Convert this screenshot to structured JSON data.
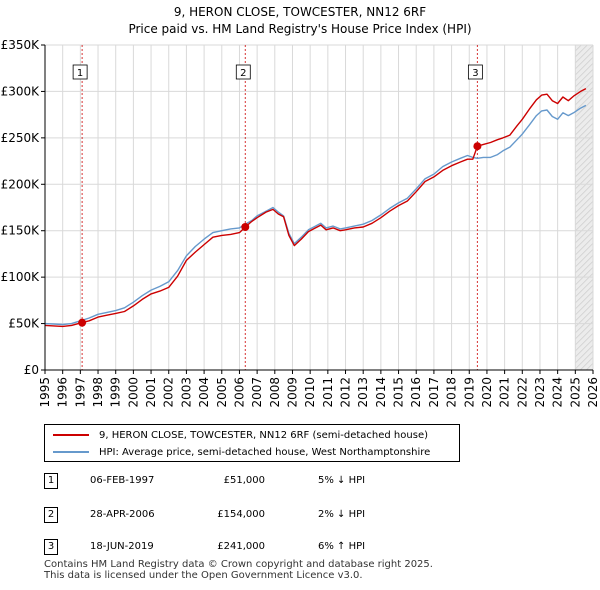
{
  "title": {
    "line1": "9, HERON CLOSE, TOWCESTER, NN12 6RF",
    "line2": "Price paid vs. HM Land Registry's House Price Index (HPI)"
  },
  "chart_data": {
    "type": "line",
    "title": "9, HERON CLOSE, TOWCESTER, NN12 6RF — Price paid vs. HM Land Registry's House Price Index (HPI)",
    "xlim": [
      1995,
      2026
    ],
    "ylim": [
      0,
      350000
    ],
    "x_ticks": [
      "1995",
      "1996",
      "1997",
      "1998",
      "1999",
      "2000",
      "2001",
      "2002",
      "2003",
      "2004",
      "2005",
      "2006",
      "2007",
      "2008",
      "2009",
      "2010",
      "2011",
      "2012",
      "2013",
      "2014",
      "2015",
      "2016",
      "2017",
      "2018",
      "2019",
      "2020",
      "2021",
      "2022",
      "2023",
      "2024",
      "2025",
      "2026"
    ],
    "y_ticks": [
      {
        "value": 0,
        "label": "£0"
      },
      {
        "value": 50000,
        "label": "£50K"
      },
      {
        "value": 100000,
        "label": "£100K"
      },
      {
        "value": 150000,
        "label": "£150K"
      },
      {
        "value": 200000,
        "label": "£200K"
      },
      {
        "value": 250000,
        "label": "£250K"
      },
      {
        "value": 300000,
        "label": "£300K"
      },
      {
        "value": 350000,
        "label": "£350K"
      }
    ],
    "grid": true,
    "shaded_future_from": 2025.0,
    "series": [
      {
        "name": "9, HERON CLOSE, TOWCESTER, NN12 6RF (semi-detached house)",
        "color": "#cc0000",
        "points": [
          [
            1995.0,
            48000
          ],
          [
            1995.5,
            47500
          ],
          [
            1996.0,
            47000
          ],
          [
            1996.5,
            48000
          ],
          [
            1997.1,
            51000
          ],
          [
            1997.5,
            53000
          ],
          [
            1998.0,
            57000
          ],
          [
            1998.5,
            59000
          ],
          [
            1999.0,
            61000
          ],
          [
            1999.5,
            63000
          ],
          [
            2000.0,
            69000
          ],
          [
            2000.5,
            76000
          ],
          [
            2001.0,
            82000
          ],
          [
            2001.5,
            85000
          ],
          [
            2002.0,
            89000
          ],
          [
            2002.5,
            101000
          ],
          [
            2003.0,
            118000
          ],
          [
            2003.5,
            127000
          ],
          [
            2004.0,
            135000
          ],
          [
            2004.5,
            143000
          ],
          [
            2005.0,
            145000
          ],
          [
            2005.5,
            146000
          ],
          [
            2006.0,
            148000
          ],
          [
            2006.33,
            154000
          ],
          [
            2006.7,
            160000
          ],
          [
            2007.0,
            164000
          ],
          [
            2007.5,
            170000
          ],
          [
            2007.9,
            173000
          ],
          [
            2008.2,
            168000
          ],
          [
            2008.5,
            165000
          ],
          [
            2008.8,
            145000
          ],
          [
            2009.1,
            134000
          ],
          [
            2009.5,
            141000
          ],
          [
            2009.9,
            149000
          ],
          [
            2010.3,
            153000
          ],
          [
            2010.6,
            156000
          ],
          [
            2010.9,
            151000
          ],
          [
            2011.3,
            153000
          ],
          [
            2011.7,
            150000
          ],
          [
            2012.0,
            151000
          ],
          [
            2012.5,
            153000
          ],
          [
            2013.0,
            154000
          ],
          [
            2013.5,
            158000
          ],
          [
            2014.0,
            164000
          ],
          [
            2014.5,
            171000
          ],
          [
            2015.0,
            177000
          ],
          [
            2015.5,
            182000
          ],
          [
            2016.0,
            192000
          ],
          [
            2016.5,
            203000
          ],
          [
            2017.0,
            208000
          ],
          [
            2017.5,
            215000
          ],
          [
            2018.0,
            220000
          ],
          [
            2018.5,
            224000
          ],
          [
            2018.9,
            227000
          ],
          [
            2019.2,
            227000
          ],
          [
            2019.46,
            241000
          ],
          [
            2019.8,
            243000
          ],
          [
            2020.2,
            245000
          ],
          [
            2020.6,
            248000
          ],
          [
            2020.9,
            250000
          ],
          [
            2021.3,
            253000
          ],
          [
            2021.7,
            263000
          ],
          [
            2022.0,
            270000
          ],
          [
            2022.4,
            281000
          ],
          [
            2022.8,
            291000
          ],
          [
            2023.1,
            296000
          ],
          [
            2023.4,
            297000
          ],
          [
            2023.7,
            290000
          ],
          [
            2024.0,
            287000
          ],
          [
            2024.3,
            294000
          ],
          [
            2024.6,
            290000
          ],
          [
            2024.9,
            295000
          ],
          [
            2025.3,
            300000
          ],
          [
            2025.6,
            303000
          ]
        ]
      },
      {
        "name": "HPI: Average price, semi-detached house, West Northamptonshire",
        "color": "#6699cc",
        "points": [
          [
            1995.0,
            50000
          ],
          [
            1995.5,
            49500
          ],
          [
            1996.0,
            49000
          ],
          [
            1996.5,
            50000
          ],
          [
            1997.1,
            53500
          ],
          [
            1997.5,
            56000
          ],
          [
            1998.0,
            60000
          ],
          [
            1998.5,
            62000
          ],
          [
            1999.0,
            64000
          ],
          [
            1999.5,
            67000
          ],
          [
            2000.0,
            73000
          ],
          [
            2000.5,
            80000
          ],
          [
            2001.0,
            86000
          ],
          [
            2001.5,
            90000
          ],
          [
            2002.0,
            95000
          ],
          [
            2002.5,
            107000
          ],
          [
            2003.0,
            123000
          ],
          [
            2003.5,
            133000
          ],
          [
            2004.0,
            141000
          ],
          [
            2004.5,
            148000
          ],
          [
            2005.0,
            150000
          ],
          [
            2005.5,
            152000
          ],
          [
            2006.0,
            153000
          ],
          [
            2006.33,
            157000
          ],
          [
            2006.7,
            161000
          ],
          [
            2007.0,
            166000
          ],
          [
            2007.5,
            171000
          ],
          [
            2007.9,
            175000
          ],
          [
            2008.2,
            170000
          ],
          [
            2008.5,
            166000
          ],
          [
            2008.8,
            147000
          ],
          [
            2009.1,
            136000
          ],
          [
            2009.5,
            143000
          ],
          [
            2009.9,
            151000
          ],
          [
            2010.3,
            155000
          ],
          [
            2010.6,
            158000
          ],
          [
            2010.9,
            153000
          ],
          [
            2011.3,
            155000
          ],
          [
            2011.7,
            152000
          ],
          [
            2012.0,
            153000
          ],
          [
            2012.5,
            155000
          ],
          [
            2013.0,
            157000
          ],
          [
            2013.5,
            161000
          ],
          [
            2014.0,
            167000
          ],
          [
            2014.5,
            174000
          ],
          [
            2015.0,
            180000
          ],
          [
            2015.5,
            185000
          ],
          [
            2016.0,
            195000
          ],
          [
            2016.5,
            206000
          ],
          [
            2017.0,
            211000
          ],
          [
            2017.5,
            219000
          ],
          [
            2018.0,
            224000
          ],
          [
            2018.5,
            228000
          ],
          [
            2018.9,
            231000
          ],
          [
            2019.2,
            229000
          ],
          [
            2019.46,
            228000
          ],
          [
            2019.8,
            229000
          ],
          [
            2020.2,
            229000
          ],
          [
            2020.6,
            232000
          ],
          [
            2020.9,
            236000
          ],
          [
            2021.3,
            240000
          ],
          [
            2021.7,
            248000
          ],
          [
            2022.0,
            254000
          ],
          [
            2022.4,
            264000
          ],
          [
            2022.8,
            274000
          ],
          [
            2023.1,
            279000
          ],
          [
            2023.4,
            280000
          ],
          [
            2023.7,
            273000
          ],
          [
            2024.0,
            270000
          ],
          [
            2024.3,
            277000
          ],
          [
            2024.6,
            274000
          ],
          [
            2024.9,
            277000
          ],
          [
            2025.3,
            282000
          ],
          [
            2025.6,
            285000
          ]
        ]
      }
    ],
    "sales": [
      {
        "label": "1",
        "x": 1997.1,
        "price": 51000
      },
      {
        "label": "2",
        "x": 2006.33,
        "price": 154000
      },
      {
        "label": "3",
        "x": 2019.46,
        "price": 241000
      }
    ]
  },
  "legend": {
    "property": "9, HERON CLOSE, TOWCESTER, NN12 6RF (semi-detached house)",
    "hpi": "HPI: Average price, semi-detached house, West Northamptonshire",
    "property_color": "#cc0000",
    "hpi_color": "#6699cc"
  },
  "sales_table": [
    {
      "num": "1",
      "date": "06-FEB-1997",
      "price": "£51,000",
      "hpi": "5% ↓ HPI"
    },
    {
      "num": "2",
      "date": "28-APR-2006",
      "price": "£154,000",
      "hpi": "2% ↓ HPI"
    },
    {
      "num": "3",
      "date": "18-JUN-2019",
      "price": "£241,000",
      "hpi": "6% ↑ HPI"
    }
  ],
  "footer": {
    "line1": "Contains HM Land Registry data © Crown copyright and database right 2025.",
    "line2": "This data is licensed under the Open Government Licence v3.0."
  }
}
